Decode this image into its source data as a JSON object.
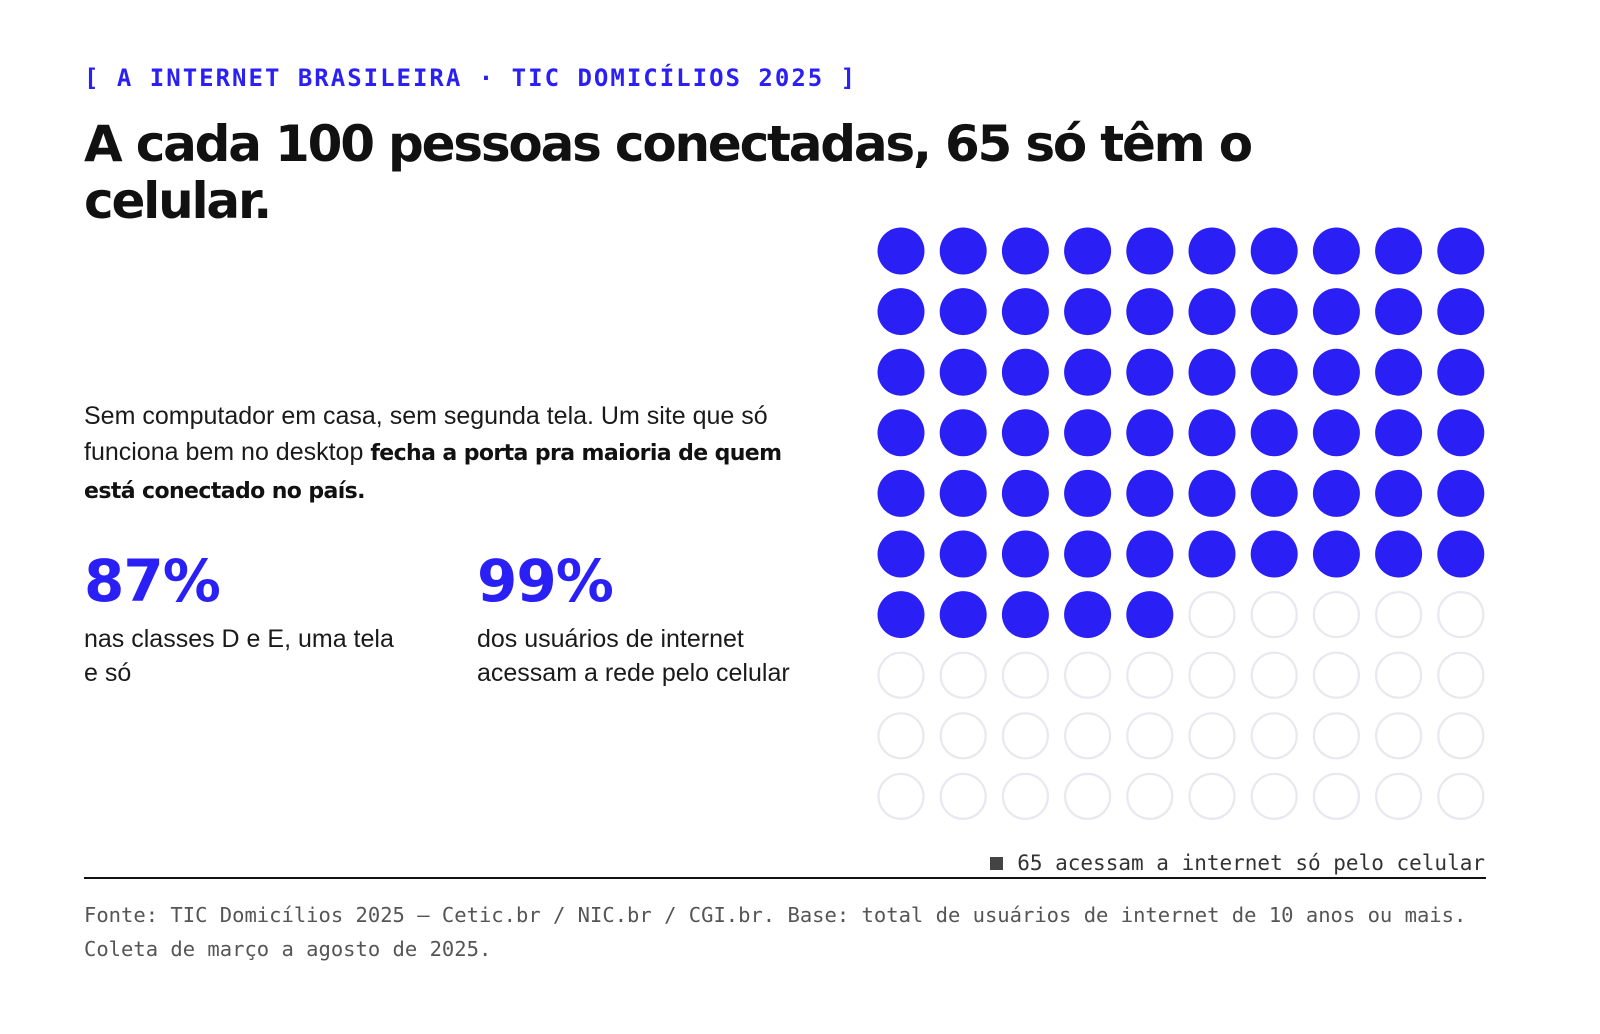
{
  "eyebrow": "[ A INTERNET BRASILEIRA · TIC DOMICÍLIOS 2025 ]",
  "headline": "A cada 100 pessoas conectadas, 65 só têm o celular.",
  "intro": {
    "text": "Sem computador em casa, sem segunda tela. Um site que só funciona bem no desktop ",
    "emphasis": "fecha a porta pra maioria de quem está conectado no país."
  },
  "stats": [
    {
      "value": "87%",
      "label": "nas classes D e E, uma tela e só"
    },
    {
      "value": "99%",
      "label": "dos usuários de internet acessam a rede pelo celular"
    }
  ],
  "legend": "65 acessam a internet só pelo celular",
  "source": "Fonte: TIC Domicílios 2025 — Cetic.br / NIC.br / CGI.br. Base: total de usuários de internet de 10 anos ou mais. Coleta de março a agosto de 2025.",
  "colors": {
    "accent": "#2a1ff5",
    "empty_stroke": "#e8e9f0",
    "text": "#111111"
  },
  "chart_data": {
    "type": "waffle",
    "total": 100,
    "filled": 65,
    "rows": 10,
    "columns": 10,
    "fill_order": "row-major from top-left"
  }
}
